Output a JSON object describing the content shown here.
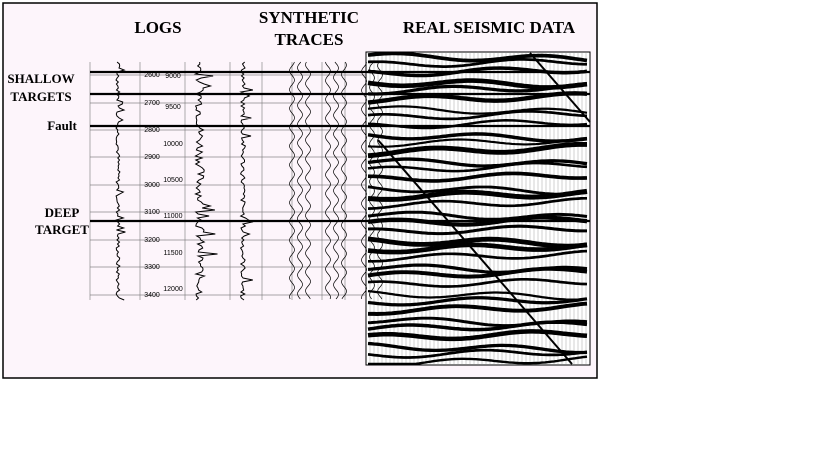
{
  "labels": {
    "logs": "LOGS",
    "synthetic": [
      "SYNTHETIC",
      "TRACES"
    ],
    "seismic": "REAL SEISMIC DATA",
    "shallow": [
      "SHALLOW",
      "TARGETS"
    ],
    "fault": "Fault",
    "deep": [
      "DEEP",
      "TARGET"
    ]
  },
  "depth_scale_1": [
    "2600",
    "2700",
    "2800",
    "2900",
    "3000",
    "3100",
    "3200",
    "3300",
    "3400"
  ],
  "depth_scale_2": [
    "9000",
    "9500",
    "10000",
    "10500",
    "11000",
    "11500",
    "12000"
  ]
}
